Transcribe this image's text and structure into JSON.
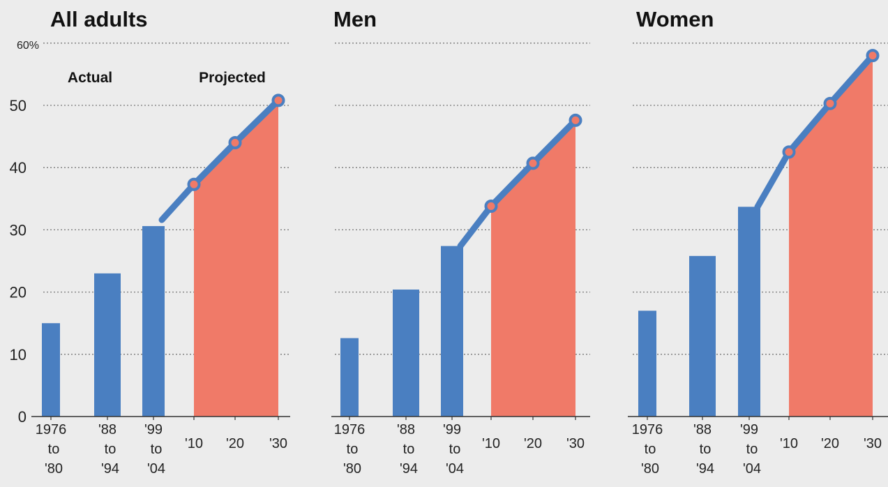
{
  "colors": {
    "actual_bar": "#4a7fc1",
    "projected_line": "#4a7fc1",
    "projected_area": "#f07a68",
    "marker_fill": "#f07a68",
    "gridline": "#777777",
    "background": "#ececec"
  },
  "chart_data": [
    {
      "type": "bar",
      "title": "All adults",
      "y_tick_labels": [
        "0",
        "10",
        "20",
        "30",
        "40",
        "50",
        "60%"
      ],
      "ylim": [
        0,
        60
      ],
      "annotations": [
        "Actual",
        "Projected"
      ],
      "x_tick_labels": [
        [
          "1976",
          "to",
          "'80"
        ],
        [
          "'88",
          "to",
          "'94"
        ],
        [
          "'99",
          "to",
          "'04"
        ],
        [
          "'10"
        ],
        [
          "'20"
        ],
        [
          "'30"
        ]
      ],
      "actual": {
        "categories": [
          "1976 to '80",
          "'88 to '94",
          "'99 to '04"
        ],
        "values": [
          15,
          23,
          30.6
        ]
      },
      "projected": {
        "categories": [
          "'10",
          "'20",
          "'30"
        ],
        "values": [
          37.3,
          44,
          50.8
        ]
      },
      "grid": true
    },
    {
      "type": "bar",
      "title": "Men",
      "x_tick_labels": [
        [
          "1976",
          "to",
          "'80"
        ],
        [
          "'88",
          "to",
          "'94"
        ],
        [
          "'99",
          "to",
          "'04"
        ],
        [
          "'10"
        ],
        [
          "'20"
        ],
        [
          "'30"
        ]
      ],
      "actual": {
        "categories": [
          "1976 to '80",
          "'88 to '94",
          "'99 to '04"
        ],
        "values": [
          12.6,
          20.4,
          27.4
        ]
      },
      "projected": {
        "categories": [
          "'10",
          "'20",
          "'30"
        ],
        "values": [
          33.8,
          40.7,
          47.6
        ]
      },
      "ylim": [
        0,
        60
      ],
      "grid": true
    },
    {
      "type": "bar",
      "title": "Women",
      "x_tick_labels": [
        [
          "1976",
          "to",
          "'80"
        ],
        [
          "'88",
          "to",
          "'94"
        ],
        [
          "'99",
          "to",
          "'04"
        ],
        [
          "'10"
        ],
        [
          "'20"
        ],
        [
          "'30"
        ]
      ],
      "actual": {
        "categories": [
          "1976 to '80",
          "'88 to '94",
          "'99 to '04"
        ],
        "values": [
          17,
          25.8,
          33.7
        ]
      },
      "projected": {
        "categories": [
          "'10",
          "'20",
          "'30"
        ],
        "values": [
          42.5,
          50.3,
          58
        ]
      },
      "ylim": [
        0,
        60
      ],
      "grid": true
    }
  ]
}
